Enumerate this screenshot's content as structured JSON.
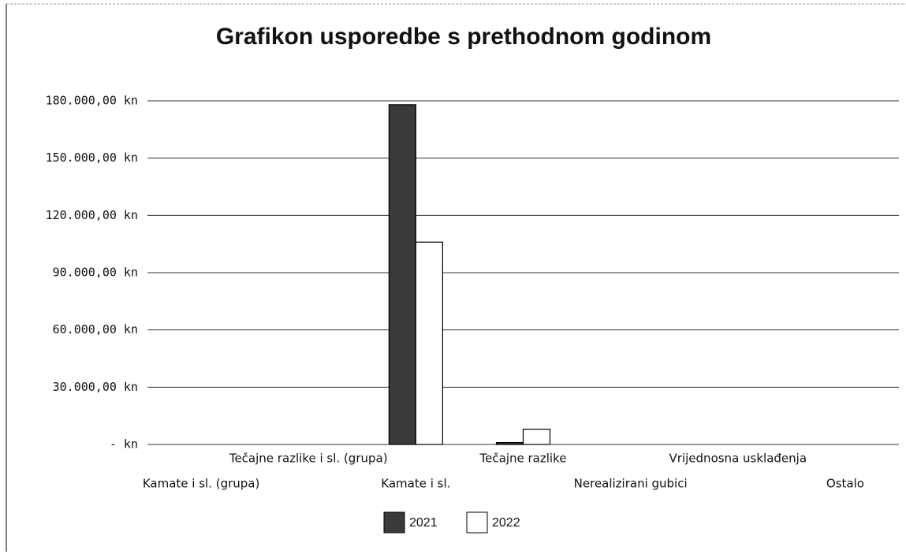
{
  "chart_data": {
    "type": "bar",
    "title": "Grafikon usporedbe s prethodnom godinom",
    "categories": [
      "Kamate i sl. (grupa)",
      "Tečajne razlike i sl. (grupa)",
      "Kamate i sl.",
      "Tečajne razlike",
      "Nerealizirani gubici",
      "Vrijednosna usklađenja",
      "Ostalo"
    ],
    "series": [
      {
        "name": "2021",
        "color": "#3a3a3a",
        "values": [
          0,
          0,
          178000,
          1000,
          0,
          0,
          0
        ]
      },
      {
        "name": "2022",
        "color": "#ffffff",
        "values": [
          0,
          0,
          106000,
          8000,
          0,
          0,
          0
        ]
      }
    ],
    "ylim": [
      0,
      180000
    ],
    "yticks": [
      {
        "value": 0,
        "label": "-  kn"
      },
      {
        "value": 30000,
        "label": "30.000,00 kn"
      },
      {
        "value": 60000,
        "label": "60.000,00 kn"
      },
      {
        "value": 90000,
        "label": "90.000,00 kn"
      },
      {
        "value": 120000,
        "label": "120.000,00 kn"
      },
      {
        "value": 150000,
        "label": "150.000,00 kn"
      },
      {
        "value": 180000,
        "label": "180.000,00 kn"
      }
    ],
    "grid": true,
    "legend": "bottom"
  }
}
